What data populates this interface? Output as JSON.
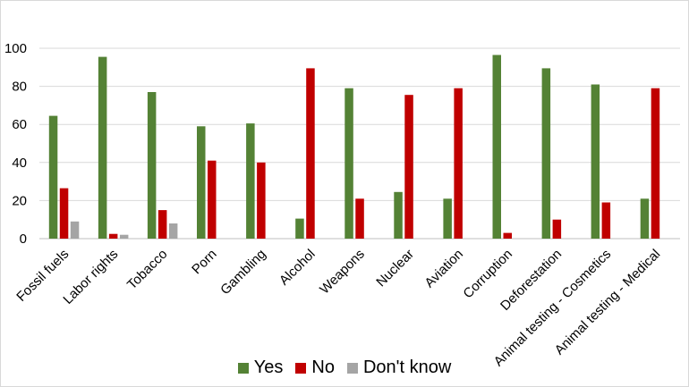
{
  "chart_data": {
    "type": "bar",
    "title": "",
    "xlabel": "",
    "ylabel": "",
    "ylim": [
      0,
      100
    ],
    "yticks": [
      0,
      20,
      40,
      60,
      80,
      100
    ],
    "grid": true,
    "legend_position": "bottom",
    "categories": [
      "Fossil fuels",
      "Labor rights",
      "Tobacco",
      "Porn",
      "Gambling",
      "Alcohol",
      "Weapons",
      "Nuclear",
      "Aviation",
      "Corruption",
      "Deforestation",
      "Animal testing - Cosmetics",
      "Animal testing - Medical"
    ],
    "series": [
      {
        "name": "Yes",
        "color": "#548235",
        "values": [
          64.5,
          95.5,
          77,
          59,
          60.5,
          10.5,
          79,
          24.5,
          21,
          96.5,
          89.5,
          81,
          21
        ]
      },
      {
        "name": "No",
        "color": "#c00000",
        "values": [
          26.5,
          2.5,
          15,
          41,
          40,
          89.5,
          21,
          75.5,
          79,
          3,
          10,
          19,
          79
        ]
      },
      {
        "name": "Don't know",
        "color": "#a5a5a5",
        "values": [
          9,
          2,
          8,
          null,
          null,
          null,
          null,
          null,
          null,
          null,
          null,
          null,
          null
        ]
      }
    ]
  }
}
